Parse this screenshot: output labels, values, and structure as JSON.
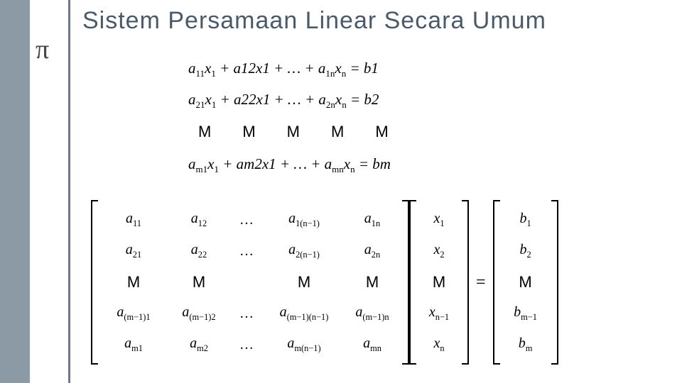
{
  "title": "Sistem Persamaan Linear Secara Umum",
  "pi": "π",
  "colors": {
    "sidebar": "#8c9aa6",
    "border": "#6b7b8a",
    "title": "#4a5a6a",
    "text": "#000000",
    "bg": "#ffffff"
  },
  "equations": {
    "rows": [
      {
        "terms": [
          "a",
          "11",
          "x",
          "1",
          " + ",
          "a",
          "12",
          "x",
          "1",
          " + … + ",
          "a",
          "1n",
          "x",
          "n",
          " = ",
          "b",
          "1"
        ]
      },
      {
        "terms": [
          "a",
          "21",
          "x",
          "1",
          " + ",
          "a",
          "22",
          "x",
          "1",
          " + … + ",
          "a",
          "2n",
          "x",
          "n",
          " = ",
          "b",
          "2"
        ]
      },
      {
        "terms": [
          "a",
          "m1",
          "x",
          "1",
          " + ",
          "a",
          "m2",
          "x",
          "1",
          " + … + ",
          "a",
          "mn",
          "x",
          "n",
          " = ",
          "b",
          "m"
        ]
      }
    ],
    "vdots_row": [
      "M",
      "M",
      "M",
      "M",
      "M"
    ]
  },
  "matrixA": {
    "cols": 5,
    "rows": [
      [
        {
          "t": "a",
          "s": "11"
        },
        {
          "t": "a",
          "s": "12"
        },
        {
          "dots": "…"
        },
        {
          "t": "a",
          "s": "1(n−1)"
        },
        {
          "t": "a",
          "s": "1n"
        }
      ],
      [
        {
          "t": "a",
          "s": "21"
        },
        {
          "t": "a",
          "s": "22"
        },
        {
          "dots": "…"
        },
        {
          "t": "a",
          "s": "2(n−1)"
        },
        {
          "t": "a",
          "s": "2n"
        }
      ],
      [
        {
          "M": true
        },
        {
          "M": true
        },
        {
          "blank": true
        },
        {
          "M": true
        },
        {
          "M": true
        }
      ],
      [
        {
          "t": "a",
          "s": "(m−1)1"
        },
        {
          "t": "a",
          "s": "(m−1)2"
        },
        {
          "dots": "…"
        },
        {
          "t": "a",
          "s": "(m−1)(n−1)"
        },
        {
          "t": "a",
          "s": "(m−1)n"
        }
      ],
      [
        {
          "t": "a",
          "s": "m1"
        },
        {
          "t": "a",
          "s": "m2"
        },
        {
          "dots": "…"
        },
        {
          "t": "a",
          "s": "m(n−1)"
        },
        {
          "t": "a",
          "s": "mn"
        }
      ]
    ]
  },
  "vectorX": {
    "rows": [
      {
        "t": "x",
        "s": "1"
      },
      {
        "t": "x",
        "s": "2"
      },
      {
        "M": true
      },
      {
        "t": "x",
        "s": "n−1"
      },
      {
        "t": "x",
        "s": "n"
      }
    ]
  },
  "vectorB": {
    "rows": [
      {
        "t": "b",
        "s": "1"
      },
      {
        "t": "b",
        "s": "2"
      },
      {
        "M": true
      },
      {
        "t": "b",
        "s": "m−1"
      },
      {
        "t": "b",
        "s": "m"
      }
    ]
  },
  "equals": "="
}
